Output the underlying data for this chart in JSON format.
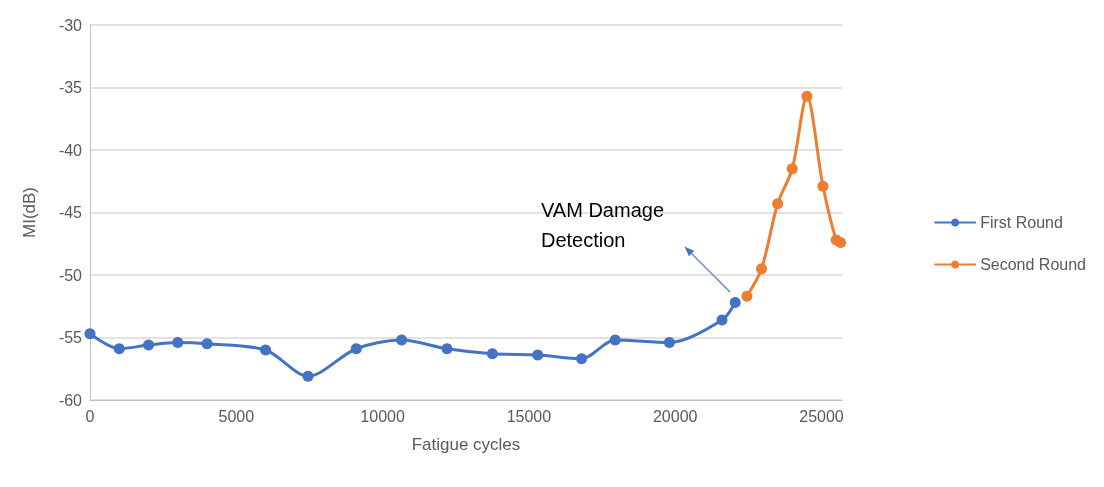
{
  "chart_data": {
    "type": "line",
    "xlabel": "Fatigue cycles",
    "ylabel": "MI(dB)",
    "xlim": [
      0,
      25700
    ],
    "xticks": [
      0,
      5000,
      10000,
      15000,
      20000,
      25000
    ],
    "ylim": [
      -60,
      -30
    ],
    "yticks": [
      -60,
      -55,
      -50,
      -45,
      -40,
      -35,
      -30
    ],
    "grid": "y",
    "legend": "right",
    "marker": "circle",
    "annotations": [
      "VAM Damage Detection"
    ],
    "series": [
      {
        "name": "First Round",
        "color": "#4472c4",
        "x": [
          0,
          1000,
          2000,
          3000,
          4000,
          6000,
          7450,
          9100,
          10650,
          12200,
          13750,
          15300,
          16800,
          17950,
          19800,
          21600,
          22050
        ],
        "values": [
          -54.7,
          -55.9,
          -55.6,
          -55.4,
          -55.5,
          -56.0,
          -58.1,
          -55.9,
          -55.2,
          -55.9,
          -56.3,
          -56.4,
          -56.7,
          -55.2,
          -55.4,
          -53.6,
          -52.2
        ]
      },
      {
        "name": "Second Round",
        "color": "#ed7d31",
        "x": [
          22450,
          22950,
          23500,
          24000,
          24500,
          25050,
          25500,
          25650
        ],
        "values": [
          -51.7,
          -49.5,
          -44.3,
          -41.5,
          -35.7,
          -42.9,
          -47.2,
          -47.4
        ]
      }
    ]
  }
}
